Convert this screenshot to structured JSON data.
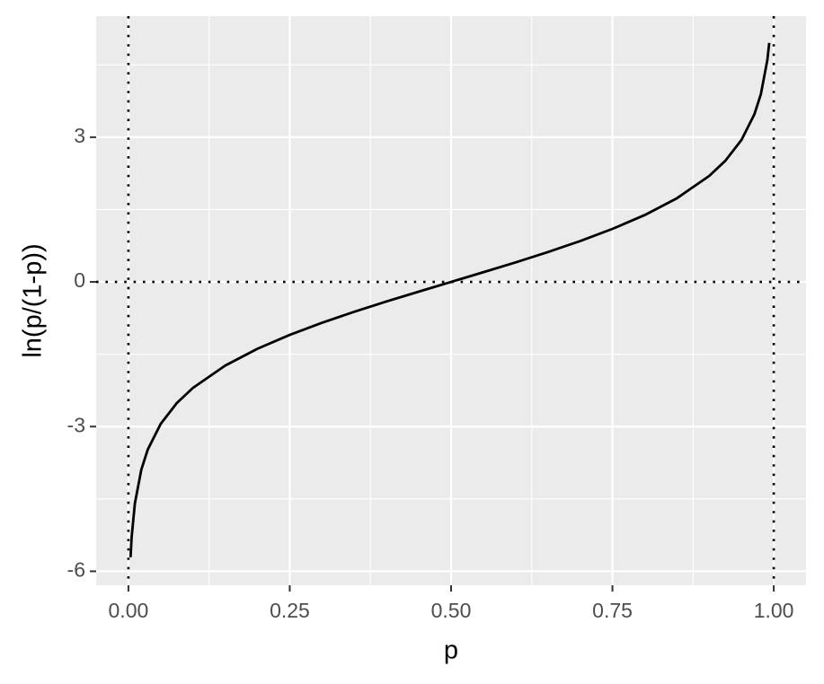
{
  "chart_data": {
    "type": "line",
    "x_label": "p",
    "y_label": "ln(p/(1-p))",
    "x": [
      0.0033,
      0.005,
      0.01,
      0.02,
      0.03,
      0.05,
      0.075,
      0.1,
      0.15,
      0.2,
      0.25,
      0.3,
      0.35,
      0.4,
      0.45,
      0.5,
      0.55,
      0.6,
      0.65,
      0.7,
      0.75,
      0.8,
      0.85,
      0.9,
      0.925,
      0.95,
      0.97,
      0.98,
      0.99,
      0.993
    ],
    "series": [
      {
        "color": "#000000",
        "values": [
          -5.71,
          -5.293,
          -4.595,
          -3.892,
          -3.476,
          -2.944,
          -2.512,
          -2.197,
          -1.735,
          -1.386,
          -1.099,
          -0.847,
          -0.619,
          -0.405,
          -0.201,
          0,
          0.201,
          0.405,
          0.619,
          0.847,
          1.099,
          1.386,
          1.735,
          2.197,
          2.512,
          2.944,
          3.476,
          3.892,
          4.595,
          4.955
        ]
      }
    ],
    "xlim": [
      -0.05,
      1.05
    ],
    "ylim": [
      -6.29,
      5.51
    ],
    "xticks": [
      {
        "value": 0,
        "label": "0.00"
      },
      {
        "value": 0.25,
        "label": "0.25"
      },
      {
        "value": 0.5,
        "label": "0.50"
      },
      {
        "value": 0.75,
        "label": "0.75"
      },
      {
        "value": 1,
        "label": "1.00"
      }
    ],
    "yticks": [
      -6,
      -3,
      0,
      3
    ],
    "hlines": [
      0
    ],
    "vlines": [
      0,
      1
    ],
    "grid": true
  }
}
